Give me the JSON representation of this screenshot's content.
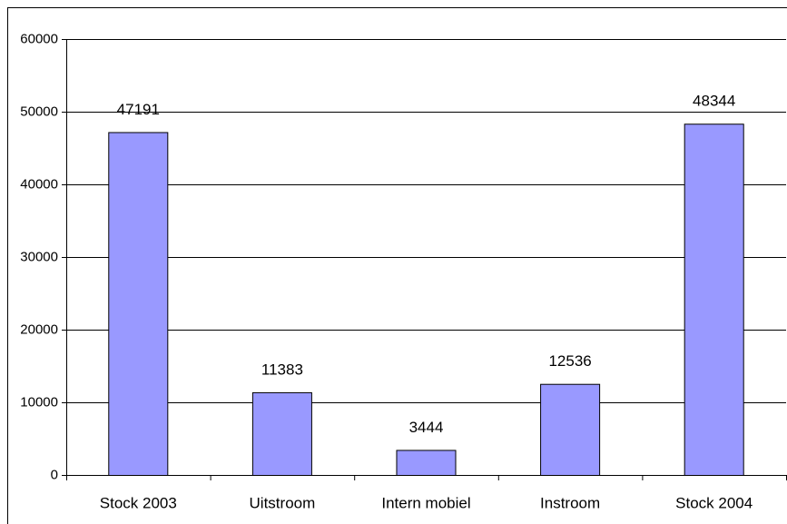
{
  "chart_data": {
    "type": "bar",
    "categories": [
      "Stock 2003",
      "Uitstroom",
      "Intern mobiel",
      "Instroom",
      "Stock 2004"
    ],
    "values": [
      47191,
      11383,
      3444,
      12536,
      48344
    ],
    "color": "#9999ff",
    "ylim": [
      0,
      60000
    ],
    "yticks": [
      0,
      10000,
      20000,
      30000,
      40000,
      50000,
      60000
    ],
    "grid": true
  }
}
